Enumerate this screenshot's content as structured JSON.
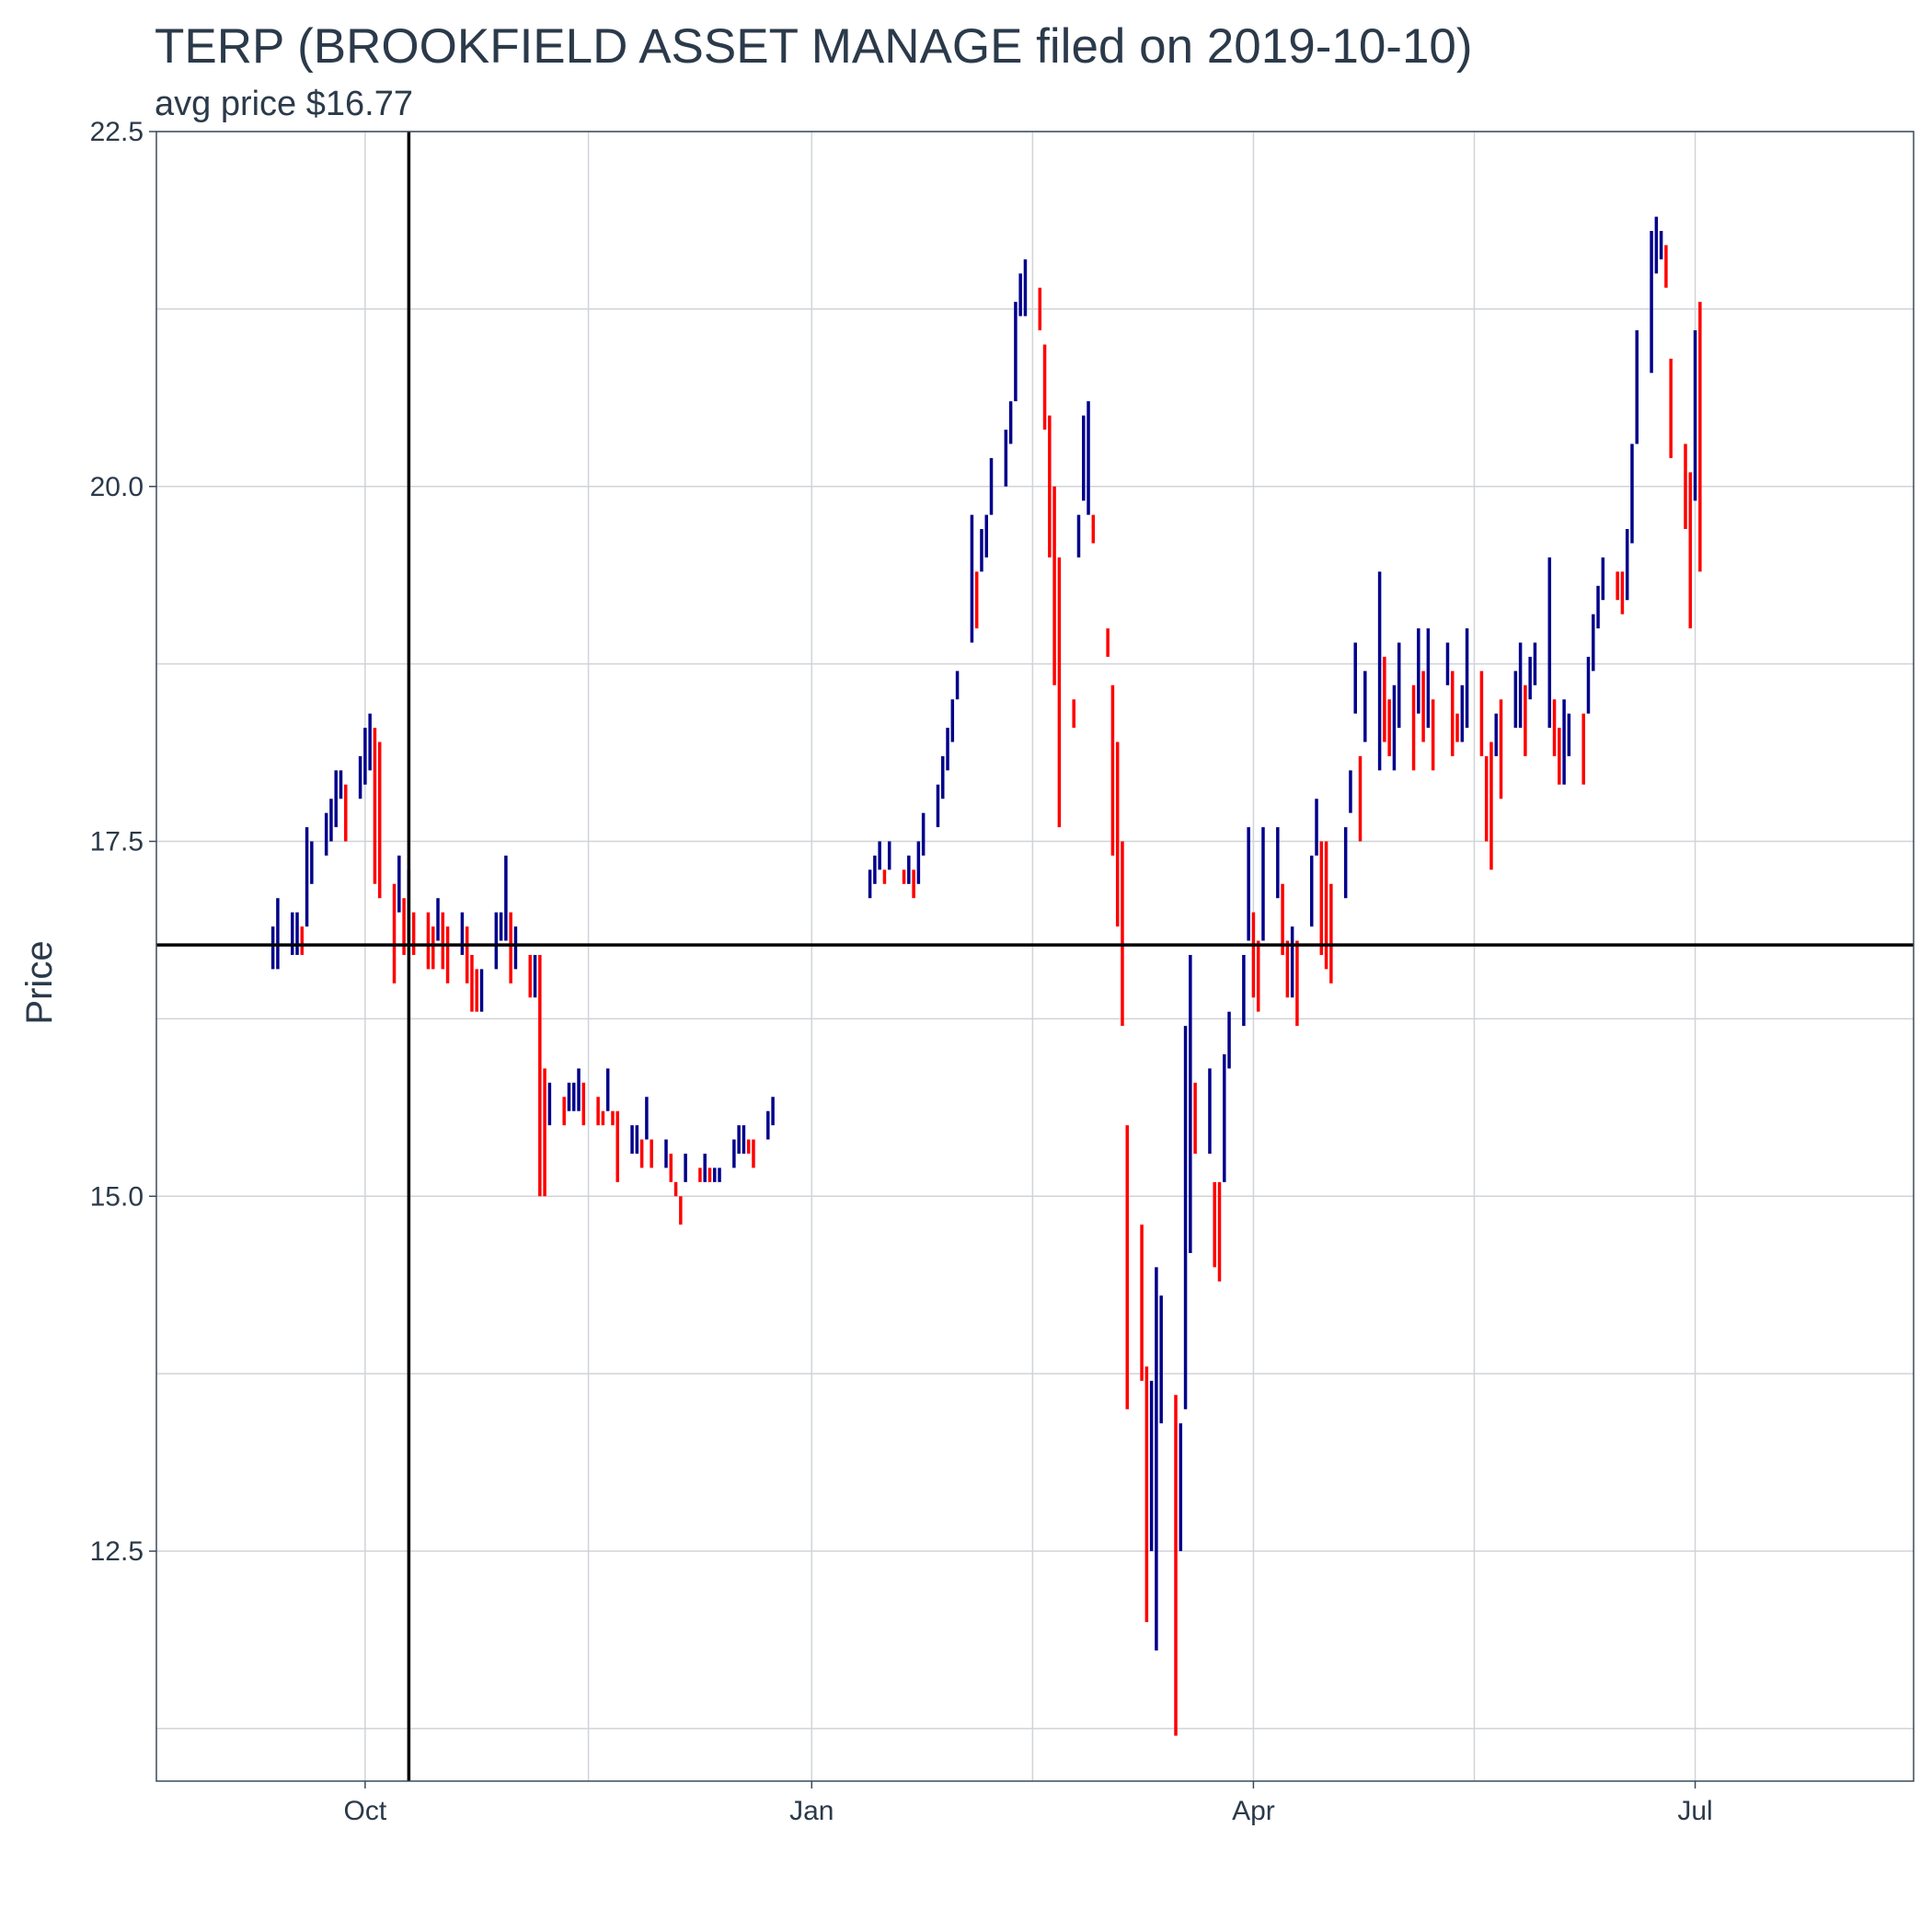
{
  "chart_data": {
    "type": "ohlc",
    "title": "TERP (BROOKFIELD ASSET MANAGE filed on 2019-10-10)",
    "subtitle": "avg price $16.77",
    "xlabel": "",
    "ylabel": "Price",
    "x_ticks": [
      {
        "label": "Oct",
        "date": "2019-10-01"
      },
      {
        "label": "Jan",
        "date": "2020-01-01"
      },
      {
        "label": "Apr",
        "date": "2020-04-01"
      },
      {
        "label": "Jul",
        "date": "2020-07-01"
      }
    ],
    "y_ticks": [
      "12.5",
      "15.0",
      "17.5",
      "20.0",
      "22.5"
    ],
    "xlim": [
      "2019-08-19",
      "2020-08-15"
    ],
    "ylim": [
      10.88,
      22.5
    ],
    "grid": true,
    "reference_lines": {
      "filing_date": "2019-10-10",
      "avg_price": 16.77
    },
    "colors": {
      "up": "#00008b",
      "down": "#ff0000",
      "reference": "#000000",
      "grid": "#d0d3d8",
      "panel_border": "#3a4a5c",
      "text": "#2b3a4a"
    },
    "series": [
      {
        "segment": "2019-09-start",
        "start": "2019-09-12",
        "values": [
          [
            16.9,
            16.6
          ],
          [
            17.1,
            16.6
          ],
          [
            17.0,
            16.7
          ],
          [
            17.0,
            16.7
          ],
          [
            16.9,
            16.7
          ],
          [
            17.6,
            16.9
          ],
          [
            17.5,
            17.2
          ],
          [
            17.7,
            17.4
          ],
          [
            17.8,
            17.5
          ],
          [
            18.0,
            17.6
          ],
          [
            18.0,
            17.8
          ],
          [
            17.9,
            17.5
          ],
          [
            18.1,
            17.8
          ],
          [
            18.3,
            17.9
          ],
          [
            18.4,
            18.0
          ],
          [
            18.3,
            17.2
          ],
          [
            18.2,
            17.1
          ],
          [
            17.2,
            16.5
          ],
          [
            17.4,
            17.0
          ],
          [
            17.1,
            16.7
          ],
          [
            17.3,
            16.8
          ],
          [
            17.0,
            16.7
          ],
          [
            17.0,
            16.6
          ],
          [
            16.9,
            16.6
          ],
          [
            17.1,
            16.8
          ],
          [
            17.0,
            16.6
          ],
          [
            16.9,
            16.5
          ],
          [
            17.0,
            16.7
          ],
          [
            16.9,
            16.5
          ],
          [
            16.7,
            16.3
          ],
          [
            16.6,
            16.3
          ],
          [
            16.6,
            16.3
          ],
          [
            17.0,
            16.6
          ],
          [
            17.0,
            16.8
          ],
          [
            17.4,
            16.8
          ],
          [
            17.0,
            16.5
          ],
          [
            16.9,
            16.6
          ],
          [
            16.7,
            16.4
          ],
          [
            16.7,
            16.4
          ],
          [
            16.7,
            15.0
          ],
          [
            15.9,
            15.0
          ],
          [
            15.8,
            15.5
          ],
          [
            15.7,
            15.5
          ],
          [
            15.8,
            15.6
          ],
          [
            15.8,
            15.6
          ],
          [
            15.9,
            15.6
          ],
          [
            15.8,
            15.5
          ],
          [
            15.7,
            15.5
          ],
          [
            15.6,
            15.5
          ],
          [
            15.9,
            15.6
          ],
          [
            15.6,
            15.5
          ],
          [
            15.6,
            15.1
          ],
          [
            15.5,
            15.3
          ],
          [
            15.5,
            15.3
          ],
          [
            15.4,
            15.2
          ],
          [
            15.7,
            15.4
          ],
          [
            15.4,
            15.2
          ],
          [
            15.4,
            15.2
          ],
          [
            15.3,
            15.1
          ],
          [
            15.1,
            15.0
          ],
          [
            15.0,
            14.8
          ],
          [
            15.3,
            15.1
          ],
          [
            15.2,
            15.1
          ],
          [
            15.3,
            15.1
          ],
          [
            15.2,
            15.1
          ],
          [
            15.2,
            15.1
          ],
          [
            15.2,
            15.1
          ],
          [
            15.4,
            15.2
          ],
          [
            15.5,
            15.3
          ],
          [
            15.5,
            15.3
          ],
          [
            15.4,
            15.3
          ],
          [
            15.4,
            15.2
          ],
          [
            15.6,
            15.4
          ],
          [
            15.7,
            15.5
          ]
        ]
      },
      {
        "segment": "2020-01-start",
        "start": "2020-01-13",
        "values": [
          [
            17.3,
            17.1
          ],
          [
            17.4,
            17.2
          ],
          [
            17.5,
            17.3
          ],
          [
            17.3,
            17.2
          ],
          [
            17.5,
            17.3
          ],
          [
            17.3,
            17.2
          ],
          [
            17.4,
            17.2
          ],
          [
            17.3,
            17.1
          ],
          [
            17.5,
            17.2
          ],
          [
            17.7,
            17.4
          ],
          [
            17.9,
            17.6
          ],
          [
            18.1,
            17.8
          ],
          [
            18.3,
            18.0
          ],
          [
            18.5,
            18.2
          ],
          [
            18.7,
            18.5
          ],
          [
            19.8,
            18.9
          ],
          [
            19.4,
            19.0
          ],
          [
            19.7,
            19.4
          ],
          [
            19.8,
            19.5
          ],
          [
            20.2,
            19.8
          ],
          [
            20.4,
            20.0
          ],
          [
            20.6,
            20.3
          ],
          [
            21.3,
            20.6
          ],
          [
            21.5,
            21.2
          ],
          [
            21.6,
            21.2
          ],
          [
            21.4,
            21.1
          ],
          [
            21.0,
            20.4
          ],
          [
            20.5,
            19.5
          ],
          [
            20.0,
            18.6
          ],
          [
            19.5,
            17.6
          ],
          [
            18.5,
            18.3
          ],
          [
            19.8,
            19.5
          ],
          [
            20.5,
            19.9
          ],
          [
            20.6,
            19.8
          ],
          [
            19.8,
            19.6
          ],
          [
            19.0,
            18.8
          ],
          [
            18.6,
            17.4
          ],
          [
            18.2,
            16.9
          ],
          [
            17.5,
            16.2
          ],
          [
            15.5,
            13.5
          ],
          [
            14.8,
            13.7
          ],
          [
            13.8,
            12.0
          ],
          [
            13.7,
            12.5
          ],
          [
            14.5,
            11.8
          ],
          [
            14.3,
            13.4
          ],
          [
            13.6,
            11.2
          ],
          [
            13.4,
            12.5
          ],
          [
            16.2,
            13.5
          ],
          [
            16.7,
            14.6
          ],
          [
            15.8,
            15.3
          ],
          [
            15.9,
            15.3
          ],
          [
            15.1,
            14.5
          ],
          [
            15.1,
            14.4
          ],
          [
            16.0,
            15.1
          ],
          [
            16.3,
            15.9
          ],
          [
            16.7,
            16.2
          ],
          [
            17.6,
            16.8
          ],
          [
            17.0,
            16.4
          ],
          [
            16.8,
            16.3
          ],
          [
            17.6,
            16.8
          ],
          [
            17.6,
            17.1
          ],
          [
            17.2,
            16.7
          ],
          [
            16.8,
            16.4
          ],
          [
            16.9,
            16.4
          ],
          [
            16.8,
            16.2
          ],
          [
            17.4,
            16.9
          ],
          [
            17.8,
            17.4
          ],
          [
            17.5,
            16.7
          ],
          [
            17.5,
            16.6
          ],
          [
            17.2,
            16.5
          ],
          [
            17.6,
            17.1
          ],
          [
            18.0,
            17.7
          ],
          [
            18.9,
            18.4
          ],
          [
            18.1,
            17.5
          ],
          [
            18.7,
            18.2
          ],
          [
            19.4,
            18.0
          ],
          [
            18.8,
            18.2
          ],
          [
            18.5,
            18.1
          ],
          [
            18.6,
            18.0
          ],
          [
            18.9,
            18.3
          ],
          [
            18.6,
            18.0
          ],
          [
            19.0,
            18.4
          ],
          [
            18.7,
            18.2
          ],
          [
            19.0,
            18.3
          ],
          [
            18.5,
            18.0
          ],
          [
            18.9,
            18.6
          ],
          [
            18.7,
            18.1
          ],
          [
            18.4,
            18.2
          ],
          [
            18.6,
            18.2
          ],
          [
            19.0,
            18.3
          ],
          [
            18.7,
            18.1
          ],
          [
            18.1,
            17.5
          ],
          [
            18.2,
            17.3
          ],
          [
            18.4,
            18.1
          ],
          [
            18.5,
            17.8
          ],
          [
            18.7,
            18.3
          ],
          [
            18.9,
            18.3
          ],
          [
            18.6,
            18.1
          ],
          [
            18.8,
            18.5
          ],
          [
            18.9,
            18.6
          ],
          [
            19.5,
            18.3
          ],
          [
            18.5,
            18.1
          ],
          [
            18.3,
            17.9
          ],
          [
            18.5,
            17.9
          ],
          [
            18.4,
            18.1
          ],
          [
            18.4,
            17.9
          ],
          [
            18.8,
            18.4
          ],
          [
            19.1,
            18.7
          ],
          [
            19.3,
            19.0
          ],
          [
            19.5,
            19.2
          ],
          [
            19.4,
            19.2
          ],
          [
            19.4,
            19.1
          ],
          [
            19.7,
            19.2
          ],
          [
            20.3,
            19.6
          ],
          [
            21.1,
            20.3
          ],
          [
            21.8,
            20.8
          ],
          [
            21.9,
            21.5
          ],
          [
            21.8,
            21.6
          ],
          [
            21.7,
            21.4
          ],
          [
            20.9,
            20.2
          ],
          [
            20.3,
            19.7
          ],
          [
            20.1,
            19.0
          ],
          [
            21.1,
            19.9
          ],
          [
            21.3,
            19.4
          ]
        ]
      }
    ]
  }
}
